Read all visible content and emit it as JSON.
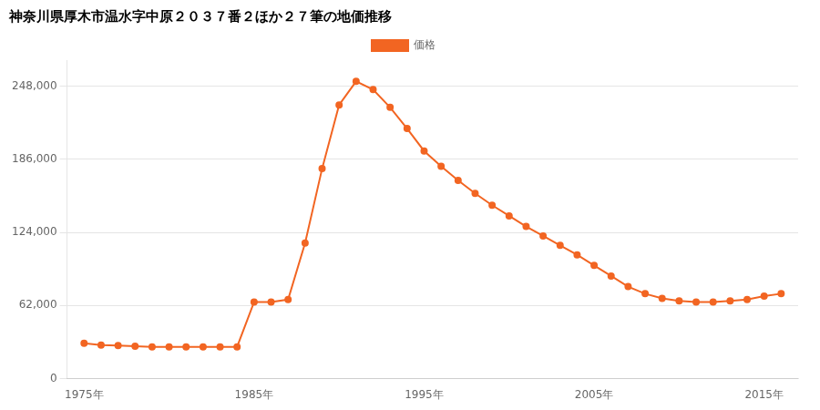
{
  "chart_data": {
    "type": "line",
    "title": "神奈川県厚木市温水字中原２０３７番２ほか２７筆の地価推移",
    "x": [
      1975,
      1976,
      1977,
      1978,
      1979,
      1980,
      1981,
      1982,
      1983,
      1984,
      1985,
      1986,
      1987,
      1988,
      1989,
      1990,
      1991,
      1992,
      1993,
      1994,
      1995,
      1996,
      1997,
      1998,
      1999,
      2000,
      2001,
      2002,
      2003,
      2004,
      2005,
      2006,
      2007,
      2008,
      2009,
      2010,
      2011,
      2012,
      2013,
      2014,
      2015,
      2016
    ],
    "series": [
      {
        "name": "価格",
        "color": "#f26522",
        "values": [
          30000,
          28500,
          28000,
          27500,
          27000,
          27000,
          27000,
          27000,
          27000,
          27000,
          65000,
          65000,
          67000,
          115000,
          178000,
          232000,
          252000,
          245000,
          230000,
          212000,
          193000,
          180000,
          168000,
          157000,
          147000,
          138000,
          129000,
          121000,
          113000,
          105000,
          96000,
          87000,
          78000,
          72000,
          68000,
          66000,
          65000,
          65000,
          66000,
          67000,
          70000,
          72000
        ]
      }
    ],
    "marker": "circle",
    "xlim": [
      1974,
      2017
    ],
    "xticks": [
      {
        "value": 1975,
        "label": "1975年"
      },
      {
        "value": 1985,
        "label": "1985年"
      },
      {
        "value": 1995,
        "label": "1995年"
      },
      {
        "value": 2005,
        "label": "2005年"
      },
      {
        "value": 2015,
        "label": "2015年"
      }
    ],
    "ylim": [
      0,
      270000
    ],
    "yticks": [
      0,
      {
        "value": 62000,
        "label": "62,000"
      },
      {
        "value": 124000,
        "label": "124,000"
      },
      {
        "value": 186000,
        "label": "186,000"
      },
      {
        "value": 248000,
        "label": "248,000"
      }
    ],
    "grid": "y",
    "legend": "top"
  }
}
